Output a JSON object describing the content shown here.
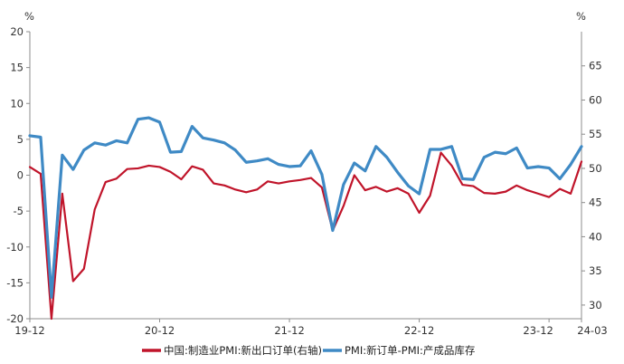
{
  "chart_data": {
    "type": "line",
    "title": "",
    "y_left": {
      "unit": "%",
      "lim": [
        -20,
        20
      ],
      "ticks": [
        "-20",
        "-15",
        "-10",
        "-5",
        "0",
        "5",
        "10",
        "15",
        "20"
      ]
    },
    "y_right": {
      "unit": "%",
      "lim": [
        28,
        70
      ],
      "ticks": [
        "30",
        "35",
        "40",
        "45",
        "50",
        "55",
        "60",
        "65"
      ]
    },
    "x_ticks": [
      "19-12",
      "20-12",
      "21-12",
      "22-12",
      "23-12",
      "24-03"
    ],
    "grid": false,
    "legend_position": "bottom",
    "series": [
      {
        "name": "中国:制造业PMI:新出口订单(右轴)",
        "axis": "right",
        "color": "#c0142a",
        "values": [
          50.2,
          49.2,
          28.0,
          46.3,
          33.5,
          35.3,
          44.0,
          48.0,
          48.5,
          49.9,
          50.0,
          50.4,
          50.2,
          49.5,
          48.4,
          50.3,
          49.8,
          47.8,
          47.5,
          46.9,
          46.5,
          46.9,
          48.1,
          47.8,
          48.1,
          48.3,
          48.6,
          47.2,
          40.9,
          44.5,
          49.0,
          46.8,
          47.3,
          46.6,
          47.1,
          46.3,
          43.5,
          46.0,
          52.3,
          50.4,
          47.6,
          47.4,
          46.4,
          46.3,
          46.6,
          47.5,
          46.8,
          46.3,
          45.8,
          47.0,
          46.3,
          51.0
        ]
      },
      {
        "name": "PMI:新订单-PMI:产成品库存",
        "axis": "left",
        "color": "#3f8ac5",
        "values": [
          5.5,
          5.3,
          -17.0,
          2.8,
          0.8,
          3.5,
          4.5,
          4.2,
          4.8,
          4.5,
          7.8,
          8.0,
          7.4,
          3.2,
          3.3,
          6.8,
          5.2,
          4.9,
          4.5,
          3.5,
          1.8,
          2.0,
          2.3,
          1.5,
          1.2,
          1.3,
          3.4,
          0.1,
          -7.7,
          -1.3,
          1.7,
          0.6,
          4.0,
          2.5,
          0.4,
          -1.5,
          -2.6,
          3.6,
          3.6,
          4.0,
          -0.5,
          -0.6,
          2.5,
          3.2,
          3.0,
          3.8,
          1.0,
          1.2,
          1.0,
          -0.5,
          1.5,
          4.0
        ]
      }
    ]
  }
}
